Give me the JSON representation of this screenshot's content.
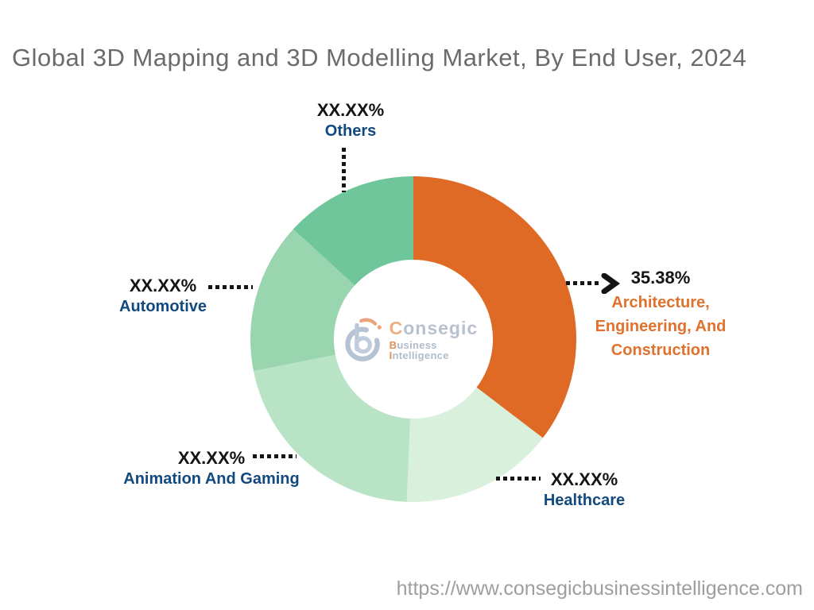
{
  "title": "Global 3D Mapping and 3D Modelling Market, By End User, 2024",
  "colors": {
    "title": "#6b6b6b",
    "percent": "#141414",
    "category": "#12497e",
    "aec": "#e0722d",
    "url": "#9e9e9e"
  },
  "chart_data": {
    "type": "pie",
    "subtype": "donut",
    "title": "Global 3D Mapping and 3D Modelling Market, By End User, 2024",
    "start_angle_deg": 0,
    "direction": "clockwise",
    "donut_hole_ratio": 0.488,
    "legend": "callout-labels",
    "segments": [
      {
        "name": "Architecture, Engineering, And Construction",
        "label_lines": [
          "Architecture,",
          "Engineering, And",
          "Construction"
        ],
        "display_percent": "35.38%",
        "arc_percent": 35.38,
        "color": "#DE6A26"
      },
      {
        "name": "Healthcare",
        "display_percent": "XX.XX%",
        "arc_percent": 15.26,
        "color": "#D8F0DC"
      },
      {
        "name": "Animation And Gaming",
        "display_percent": "XX.XX%",
        "arc_percent": 21.22,
        "color": "#B8E3C5"
      },
      {
        "name": "Automotive",
        "display_percent": "XX.XX%",
        "arc_percent": 14.95,
        "color": "#99D5AE"
      },
      {
        "name": "Others",
        "display_percent": "XX.XX%",
        "arc_percent": 13.19,
        "color": "#6FC69A"
      }
    ]
  },
  "logo": {
    "brand_first": "C",
    "brand_rest": "onsegic",
    "tag_first": "B",
    "tag_mid": "usiness ",
    "tag_i": "I",
    "tag_rest": "ntelligence"
  },
  "footer": {
    "url": "https://www.consegicbusinessintelligence.com"
  }
}
